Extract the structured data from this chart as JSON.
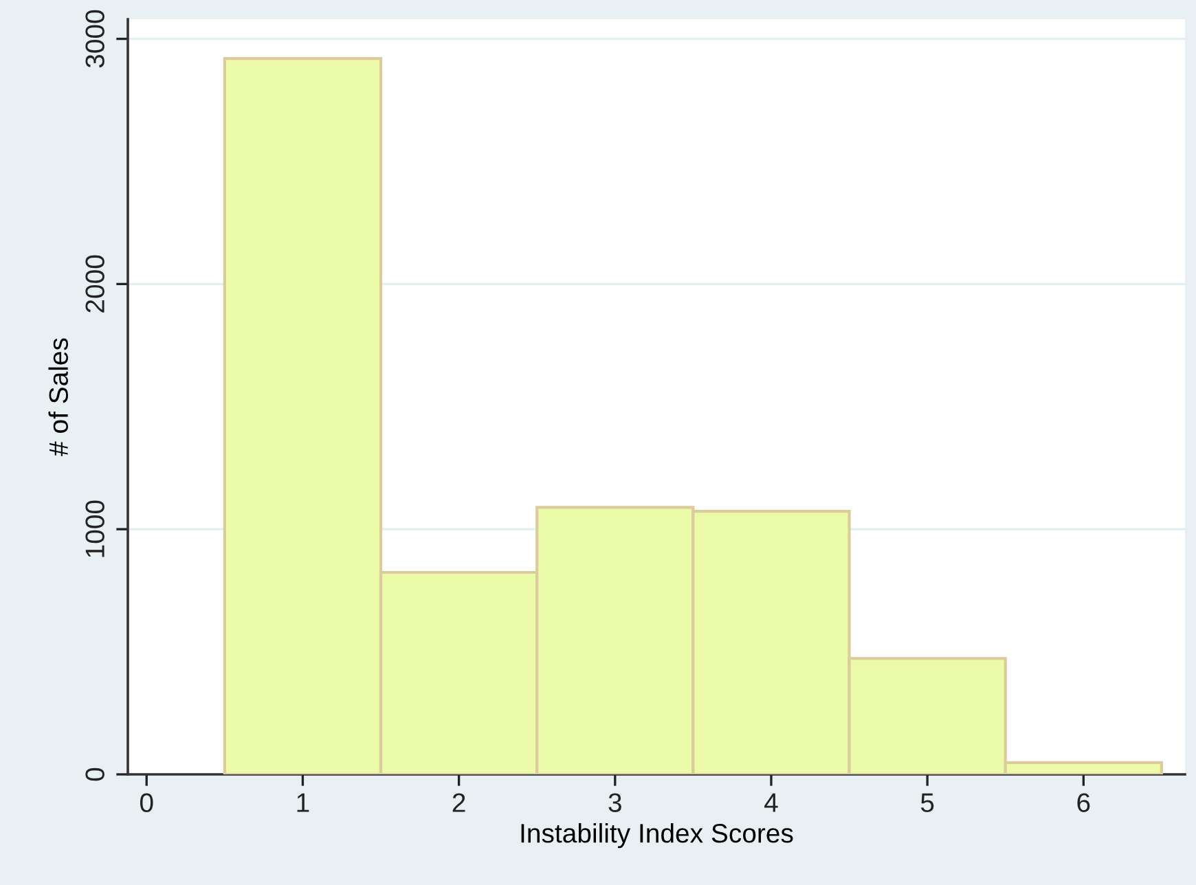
{
  "chart_data": {
    "type": "histogram",
    "xlabel": "Instability Index Scores",
    "ylabel": "# of Sales",
    "bins": [
      0.5,
      1.5,
      2.5,
      3.5,
      4.5,
      5.5,
      6.5
    ],
    "values": [
      2920,
      824,
      1089,
      1073,
      473,
      48
    ],
    "color": "#ebfba8",
    "xlim": [
      -0.12,
      6.65
    ],
    "ylim": [
      0,
      3080
    ],
    "xticks": [
      0,
      1,
      2,
      3,
      4,
      5,
      6
    ],
    "yticks": [
      0,
      1000,
      2000,
      3000
    ],
    "grid": "y"
  }
}
